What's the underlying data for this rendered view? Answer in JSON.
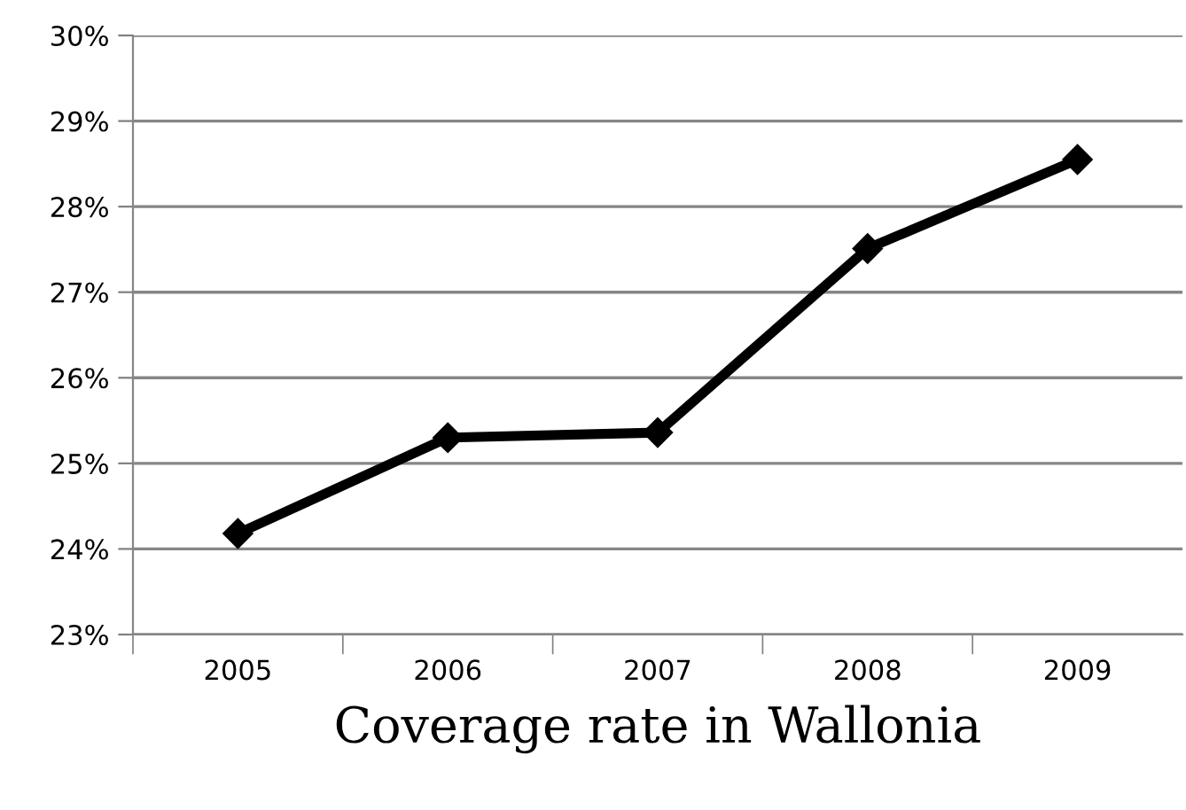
{
  "chart_data": {
    "type": "line",
    "xlabel": "Coverage rate in Wallonia",
    "categories": [
      "2005",
      "2006",
      "2007",
      "2008",
      "2009"
    ],
    "series": [
      {
        "color": "#000000",
        "values": [
          24.18,
          25.3,
          25.36,
          27.51,
          28.55
        ]
      }
    ],
    "ylim": [
      23,
      30
    ],
    "yticks": [
      {
        "value": 23,
        "label": "23%"
      },
      {
        "value": 24,
        "label": "24%"
      },
      {
        "value": 25,
        "label": "25%"
      },
      {
        "value": 26,
        "label": "26%"
      },
      {
        "value": 27,
        "label": "27%"
      },
      {
        "value": 28,
        "label": "28%"
      },
      {
        "value": 29,
        "label": "29%"
      },
      {
        "value": 30,
        "label": "30%"
      }
    ],
    "grid": "y",
    "legend": false,
    "marker": "diamond",
    "line_style": "solid"
  }
}
